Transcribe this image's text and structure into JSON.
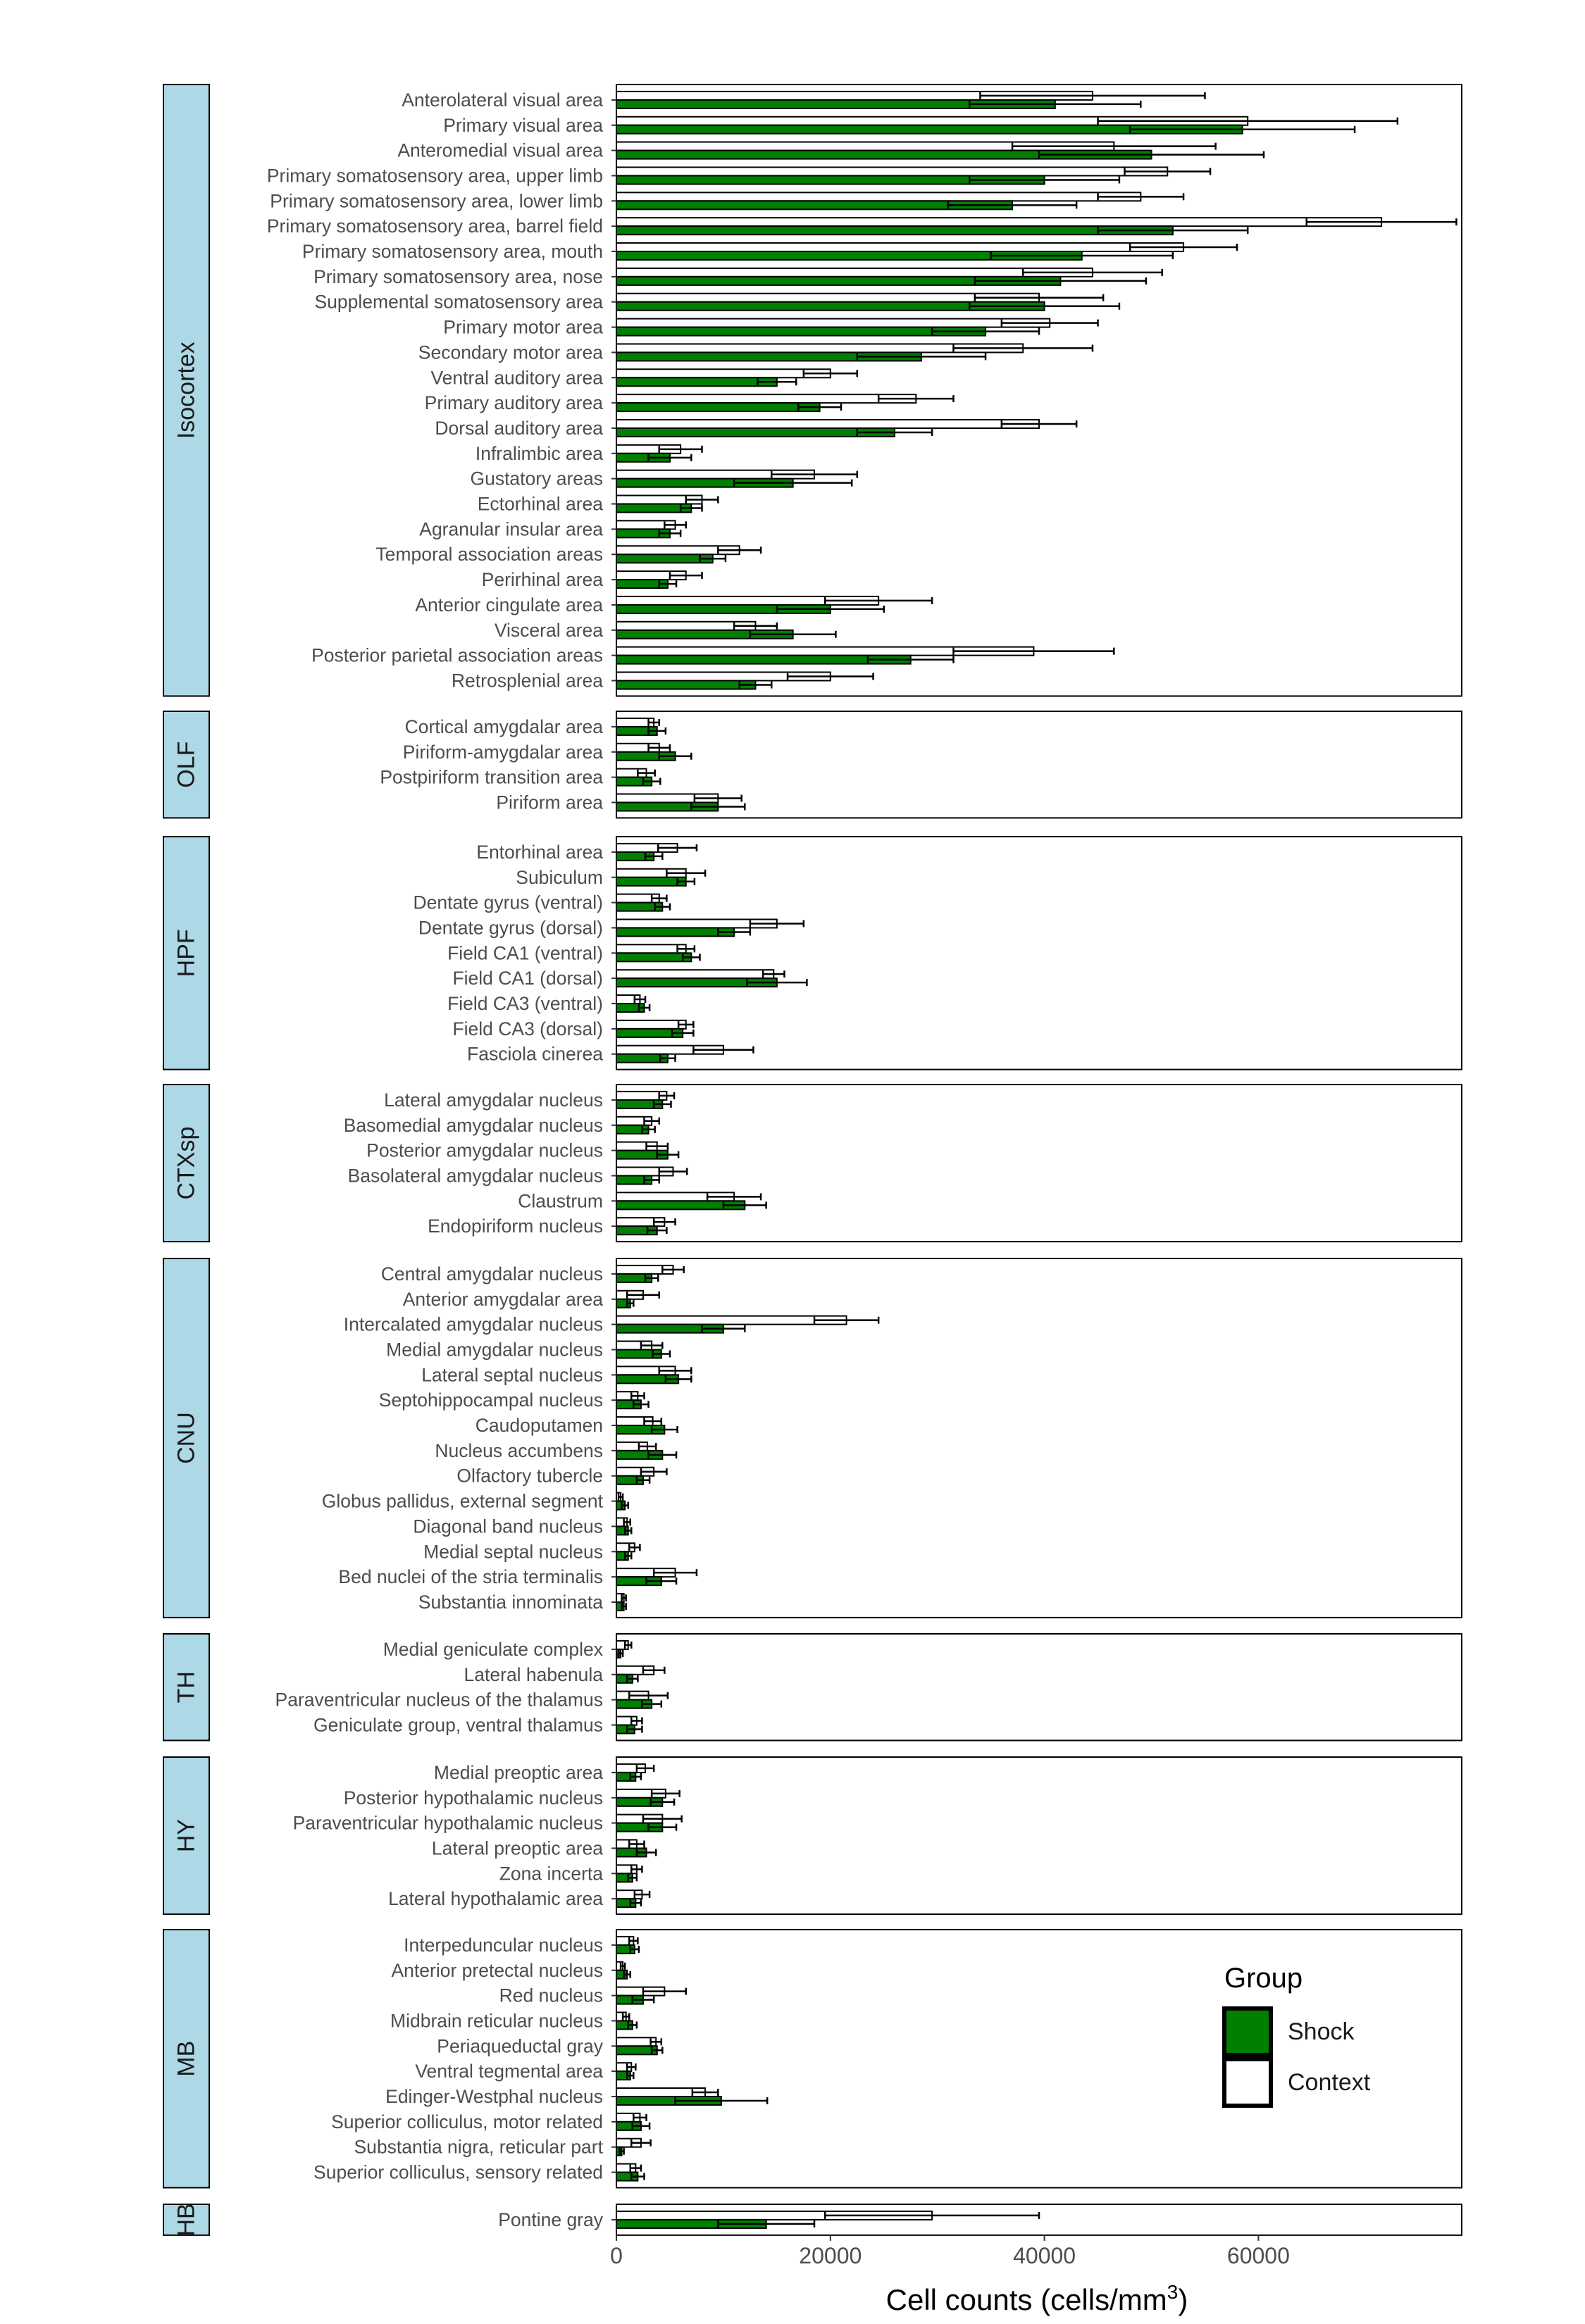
{
  "chart_data": {
    "type": "bar",
    "orientation": "horizontal",
    "xlabel": "Cell counts (cells/mm",
    "xlabel_superscript": "3",
    "xlabel_suffix": ")",
    "xlim": [
      0,
      79000
    ],
    "xticks": [
      0,
      20000,
      40000,
      60000
    ],
    "grid": false,
    "legend": {
      "title": "Group",
      "placement": "bottom-right",
      "entries": [
        {
          "name": "Shock",
          "color": "#008000"
        },
        {
          "name": "Context",
          "color": "#ffffff"
        }
      ]
    },
    "panels": [
      {
        "name": "Isocortex",
        "rows": [
          {
            "label": "Anterolateral visual area",
            "context": 44500,
            "context_err": 10500,
            "shock": 41000,
            "shock_err": 8000
          },
          {
            "label": "Primary visual area",
            "context": 59000,
            "context_err": 14000,
            "shock": 58500,
            "shock_err": 10500
          },
          {
            "label": "Anteromedial visual area",
            "context": 46500,
            "context_err": 9500,
            "shock": 50000,
            "shock_err": 10500
          },
          {
            "label": "Primary somatosensory area, upper limb",
            "context": 51500,
            "context_err": 4000,
            "shock": 40000,
            "shock_err": 7000
          },
          {
            "label": "Primary somatosensory area, lower limb",
            "context": 49000,
            "context_err": 4000,
            "shock": 37000,
            "shock_err": 6000
          },
          {
            "label": "Primary somatosensory area, barrel field",
            "context": 71500,
            "context_err": 7000,
            "shock": 52000,
            "shock_err": 7000
          },
          {
            "label": "Primary somatosensory area, mouth",
            "context": 53000,
            "context_err": 5000,
            "shock": 43500,
            "shock_err": 8500
          },
          {
            "label": "Primary somatosensory area, nose",
            "context": 44500,
            "context_err": 6500,
            "shock": 41500,
            "shock_err": 8000
          },
          {
            "label": "Supplemental somatosensory area",
            "context": 39500,
            "context_err": 6000,
            "shock": 40000,
            "shock_err": 7000
          },
          {
            "label": "Primary motor area",
            "context": 40500,
            "context_err": 4500,
            "shock": 34500,
            "shock_err": 5000
          },
          {
            "label": "Secondary motor area",
            "context": 38000,
            "context_err": 6500,
            "shock": 28500,
            "shock_err": 6000
          },
          {
            "label": "Ventral auditory area",
            "context": 20000,
            "context_err": 2500,
            "shock": 15000,
            "shock_err": 1800
          },
          {
            "label": "Primary auditory area",
            "context": 28000,
            "context_err": 3500,
            "shock": 19000,
            "shock_err": 2000
          },
          {
            "label": "Dorsal auditory area",
            "context": 39500,
            "context_err": 3500,
            "shock": 26000,
            "shock_err": 3500
          },
          {
            "label": "Infralimbic area",
            "context": 6000,
            "context_err": 2000,
            "shock": 5000,
            "shock_err": 2000
          },
          {
            "label": "Gustatory areas",
            "context": 18500,
            "context_err": 4000,
            "shock": 16500,
            "shock_err": 5500
          },
          {
            "label": "Ectorhinal area",
            "context": 8000,
            "context_err": 1500,
            "shock": 7000,
            "shock_err": 1000
          },
          {
            "label": "Agranular insular area",
            "context": 5500,
            "context_err": 1000,
            "shock": 5000,
            "shock_err": 1000
          },
          {
            "label": "Temporal association areas",
            "context": 11500,
            "context_err": 2000,
            "shock": 9000,
            "shock_err": 1200
          },
          {
            "label": "Perirhinal area",
            "context": 6500,
            "context_err": 1500,
            "shock": 4800,
            "shock_err": 800
          },
          {
            "label": "Anterior cingulate area",
            "context": 24500,
            "context_err": 5000,
            "shock": 20000,
            "shock_err": 5000
          },
          {
            "label": "Visceral area",
            "context": 13000,
            "context_err": 2000,
            "shock": 16500,
            "shock_err": 4000
          },
          {
            "label": "Posterior parietal association areas",
            "context": 39000,
            "context_err": 7500,
            "shock": 27500,
            "shock_err": 4000
          },
          {
            "label": "Retrosplenial area",
            "context": 20000,
            "context_err": 4000,
            "shock": 13000,
            "shock_err": 1500
          }
        ]
      },
      {
        "name": "OLF",
        "rows": [
          {
            "label": "Cortical amygdalar area",
            "context": 3500,
            "context_err": 500,
            "shock": 3800,
            "shock_err": 800
          },
          {
            "label": "Piriform-amygdalar area",
            "context": 4000,
            "context_err": 1000,
            "shock": 5500,
            "shock_err": 1500
          },
          {
            "label": "Postpiriform transition area",
            "context": 2800,
            "context_err": 800,
            "shock": 3300,
            "shock_err": 800
          },
          {
            "label": "Piriform area",
            "context": 9500,
            "context_err": 2200,
            "shock": 9500,
            "shock_err": 2500
          }
        ]
      },
      {
        "name": "HPF",
        "rows": [
          {
            "label": "Entorhinal area",
            "context": 5700,
            "context_err": 1800,
            "shock": 3500,
            "shock_err": 800
          },
          {
            "label": "Subiculum",
            "context": 6500,
            "context_err": 1800,
            "shock": 6500,
            "shock_err": 800
          },
          {
            "label": "Dentate gyrus (ventral)",
            "context": 4000,
            "context_err": 700,
            "shock": 4300,
            "shock_err": 700
          },
          {
            "label": "Dentate gyrus (dorsal)",
            "context": 15000,
            "context_err": 2500,
            "shock": 11000,
            "shock_err": 1500
          },
          {
            "label": "Field CA1 (ventral)",
            "context": 6500,
            "context_err": 800,
            "shock": 7000,
            "shock_err": 800
          },
          {
            "label": "Field CA1 (dorsal)",
            "context": 14700,
            "context_err": 1000,
            "shock": 15000,
            "shock_err": 2800
          },
          {
            "label": "Field CA3 (ventral)",
            "context": 2200,
            "context_err": 500,
            "shock": 2600,
            "shock_err": 500
          },
          {
            "label": "Field CA3 (dorsal)",
            "context": 6500,
            "context_err": 700,
            "shock": 6200,
            "shock_err": 1000
          },
          {
            "label": "Fasciola cinerea",
            "context": 10000,
            "context_err": 2800,
            "shock": 4800,
            "shock_err": 700
          }
        ]
      },
      {
        "name": "CTXsp",
        "rows": [
          {
            "label": "Lateral amygdalar nucleus",
            "context": 4700,
            "context_err": 700,
            "shock": 4300,
            "shock_err": 800
          },
          {
            "label": "Basomedial amygdalar nucleus",
            "context": 3300,
            "context_err": 700,
            "shock": 3000,
            "shock_err": 600
          },
          {
            "label": "Posterior amygdalar nucleus",
            "context": 3800,
            "context_err": 1000,
            "shock": 4800,
            "shock_err": 1000
          },
          {
            "label": "Basolateral amygdalar nucleus",
            "context": 5300,
            "context_err": 1300,
            "shock": 3300,
            "shock_err": 700
          },
          {
            "label": "Claustrum",
            "context": 11000,
            "context_err": 2500,
            "shock": 12000,
            "shock_err": 2000
          },
          {
            "label": "Endopiriform nucleus",
            "context": 4500,
            "context_err": 1000,
            "shock": 3800,
            "shock_err": 900
          }
        ]
      },
      {
        "name": "CNU",
        "rows": [
          {
            "label": "Central amygdalar nucleus",
            "context": 5300,
            "context_err": 1000,
            "shock": 3300,
            "shock_err": 600
          },
          {
            "label": "Anterior amygdalar area",
            "context": 2500,
            "context_err": 1500,
            "shock": 1300,
            "shock_err": 300
          },
          {
            "label": "Intercalated amygdalar nucleus",
            "context": 21500,
            "context_err": 3000,
            "shock": 10000,
            "shock_err": 2000
          },
          {
            "label": "Medial amygdalar nucleus",
            "context": 3300,
            "context_err": 1000,
            "shock": 4200,
            "shock_err": 800
          },
          {
            "label": "Lateral septal nucleus",
            "context": 5500,
            "context_err": 1500,
            "shock": 5800,
            "shock_err": 1200
          },
          {
            "label": "Septohippocampal nucleus",
            "context": 2000,
            "context_err": 600,
            "shock": 2300,
            "shock_err": 700
          },
          {
            "label": "Caudoputamen",
            "context": 3400,
            "context_err": 800,
            "shock": 4500,
            "shock_err": 1200
          },
          {
            "label": "Nucleus accumbens",
            "context": 2900,
            "context_err": 800,
            "shock": 4300,
            "shock_err": 1300
          },
          {
            "label": "Olfactory tubercle",
            "context": 3500,
            "context_err": 1200,
            "shock": 2500,
            "shock_err": 600
          },
          {
            "label": "Globus pallidus, external segment",
            "context": 400,
            "context_err": 200,
            "shock": 800,
            "shock_err": 300
          },
          {
            "label": "Diagonal band nucleus",
            "context": 1000,
            "context_err": 300,
            "shock": 1100,
            "shock_err": 300
          },
          {
            "label": "Medial septal nucleus",
            "context": 1700,
            "context_err": 500,
            "shock": 1100,
            "shock_err": 300
          },
          {
            "label": "Bed nuclei of the stria terminalis",
            "context": 5500,
            "context_err": 2000,
            "shock": 4200,
            "shock_err": 1400
          },
          {
            "label": "Substantia innominata",
            "context": 700,
            "context_err": 200,
            "shock": 700,
            "shock_err": 200
          }
        ]
      },
      {
        "name": "TH",
        "rows": [
          {
            "label": "Medial geniculate complex",
            "context": 1100,
            "context_err": 300,
            "shock": 400,
            "shock_err": 200
          },
          {
            "label": "Lateral habenula",
            "context": 3500,
            "context_err": 1000,
            "shock": 1500,
            "shock_err": 500
          },
          {
            "label": "Paraventricular nucleus of the thalamus",
            "context": 3000,
            "context_err": 1800,
            "shock": 3300,
            "shock_err": 900
          },
          {
            "label": "Geniculate group, ventral thalamus",
            "context": 1900,
            "context_err": 500,
            "shock": 1700,
            "shock_err": 700
          }
        ]
      },
      {
        "name": "HY",
        "rows": [
          {
            "label": "Medial preoptic area",
            "context": 2700,
            "context_err": 800,
            "shock": 1800,
            "shock_err": 500
          },
          {
            "label": "Posterior hypothalamic nucleus",
            "context": 4600,
            "context_err": 1300,
            "shock": 4300,
            "shock_err": 1100
          },
          {
            "label": "Paraventricular hypothalamic nucleus",
            "context": 4300,
            "context_err": 1800,
            "shock": 4300,
            "shock_err": 1300
          },
          {
            "label": "Lateral preoptic area",
            "context": 1900,
            "context_err": 700,
            "shock": 2800,
            "shock_err": 900
          },
          {
            "label": "Zona incerta",
            "context": 1900,
            "context_err": 500,
            "shock": 1500,
            "shock_err": 400
          },
          {
            "label": "Lateral hypothalamic area",
            "context": 2400,
            "context_err": 700,
            "shock": 1800,
            "shock_err": 500
          }
        ]
      },
      {
        "name": "MB",
        "rows": [
          {
            "label": "Interpeduncular nucleus",
            "context": 1600,
            "context_err": 400,
            "shock": 1700,
            "shock_err": 400
          },
          {
            "label": "Anterior pretectal nucleus",
            "context": 600,
            "context_err": 200,
            "shock": 1000,
            "shock_err": 300
          },
          {
            "label": "Red nucleus",
            "context": 4500,
            "context_err": 2000,
            "shock": 2500,
            "shock_err": 1000
          },
          {
            "label": "Midbrain reticular nucleus",
            "context": 900,
            "context_err": 300,
            "shock": 1500,
            "shock_err": 400
          },
          {
            "label": "Periaqueductal gray",
            "context": 3700,
            "context_err": 500,
            "shock": 3800,
            "shock_err": 500
          },
          {
            "label": "Ventral tegmental area",
            "context": 1400,
            "context_err": 400,
            "shock": 1300,
            "shock_err": 300
          },
          {
            "label": "Edinger-Westphal nucleus",
            "context": 8300,
            "context_err": 1200,
            "shock": 9800,
            "shock_err": 4300
          },
          {
            "label": "Superior colliculus, motor related",
            "context": 2200,
            "context_err": 600,
            "shock": 2300,
            "shock_err": 800
          },
          {
            "label": "Substantia nigra, reticular part",
            "context": 2300,
            "context_err": 900,
            "shock": 500,
            "shock_err": 200
          },
          {
            "label": "Superior colliculus, sensory related",
            "context": 1800,
            "context_err": 500,
            "shock": 2000,
            "shock_err": 600
          }
        ]
      },
      {
        "name": "HB",
        "rows": [
          {
            "label": "Pontine gray",
            "context": 29500,
            "context_err": 10000,
            "shock": 14000,
            "shock_err": 4500
          }
        ]
      }
    ]
  },
  "colors": {
    "shock": "#008000",
    "context": "#ffffff",
    "strip_fill": "#add8e6",
    "text": "#4d4d4d",
    "axis_title": "#000000"
  }
}
